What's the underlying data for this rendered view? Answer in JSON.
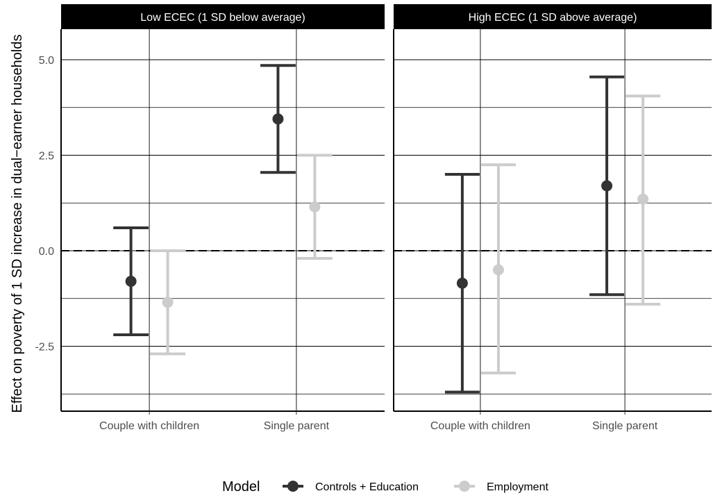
{
  "chart_data": {
    "type": "errorbar",
    "ylabel": "Effect on poverty of 1 SD increase in dual−earner households",
    "xlabel": "",
    "ylim": [
      -4.2,
      5.8
    ],
    "y_ticks": [
      5.0,
      2.5,
      0.0,
      -2.5
    ],
    "y_tick_labels": [
      "5.0",
      "2.5",
      "0.0",
      "-2.5"
    ],
    "minor_gridlines": [
      3.75,
      1.25,
      -1.25,
      -3.75
    ],
    "categories": [
      "Couple with children",
      "Single parent"
    ],
    "reference_line": {
      "y": 0,
      "style": "dashed"
    },
    "grid": true,
    "legend": {
      "title": "Model",
      "position": "bottom"
    },
    "series": [
      {
        "name": "Controls + Education",
        "color": "#333333"
      },
      {
        "name": "Employment",
        "color": "#cccccc"
      }
    ],
    "panels": [
      {
        "title": "Low ECEC (1 SD below average)",
        "points": [
          {
            "category": "Couple with children",
            "series": "Controls + Education",
            "estimate": -0.8,
            "lower": -2.2,
            "upper": 0.6
          },
          {
            "category": "Couple with children",
            "series": "Employment",
            "estimate": -1.35,
            "lower": -2.7,
            "upper": 0.0
          },
          {
            "category": "Single parent",
            "series": "Controls + Education",
            "estimate": 3.45,
            "lower": 2.05,
            "upper": 4.85
          },
          {
            "category": "Single parent",
            "series": "Employment",
            "estimate": 1.15,
            "lower": -0.2,
            "upper": 2.5
          }
        ]
      },
      {
        "title": "High ECEC (1 SD above average)",
        "points": [
          {
            "category": "Couple with children",
            "series": "Controls + Education",
            "estimate": -0.85,
            "lower": -3.7,
            "upper": 2.0
          },
          {
            "category": "Couple with children",
            "series": "Employment",
            "estimate": -0.5,
            "lower": -3.2,
            "upper": 2.25
          },
          {
            "category": "Single parent",
            "series": "Controls + Education",
            "estimate": 1.7,
            "lower": -1.15,
            "upper": 4.55
          },
          {
            "category": "Single parent",
            "series": "Employment",
            "estimate": 1.35,
            "lower": -1.4,
            "upper": 4.05
          }
        ]
      }
    ]
  }
}
